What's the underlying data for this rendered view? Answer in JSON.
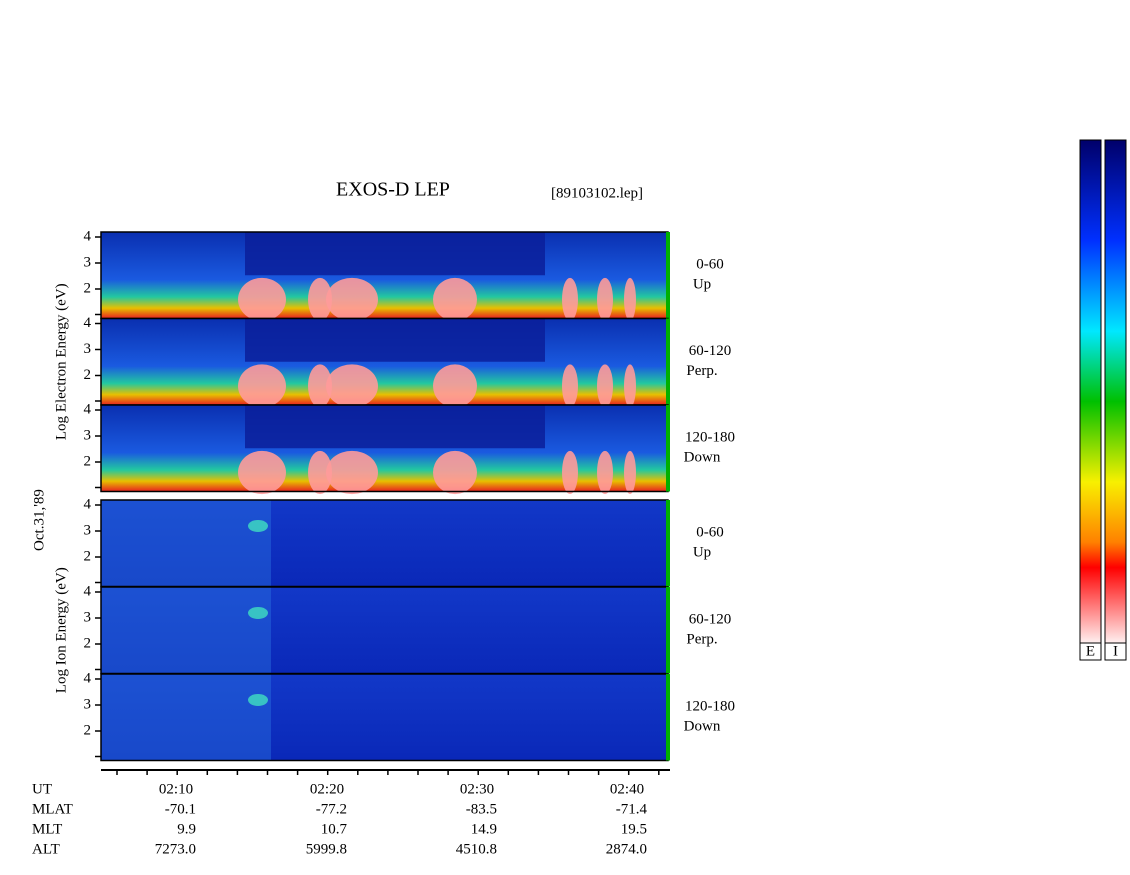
{
  "title": "EXOS-D LEP",
  "file": "[89103102.lep]",
  "date_label": "Oct.31,'89",
  "groups": [
    {
      "ylabel": "Log  Electron  Energy (eV)",
      "panels": [
        {
          "angle": "0-60",
          "direction": "Up",
          "yticks": [
            2,
            3,
            4
          ]
        },
        {
          "angle": "60-120",
          "direction": "Perp.",
          "yticks": [
            2,
            3,
            4
          ]
        },
        {
          "angle": "120-180",
          "direction": "Down",
          "yticks": [
            2,
            3,
            4
          ]
        }
      ]
    },
    {
      "ylabel": "Log  Ion  Energy (eV)",
      "panels": [
        {
          "angle": "0-60",
          "direction": "Up",
          "yticks": [
            2,
            3,
            4
          ]
        },
        {
          "angle": "60-120",
          "direction": "Perp.",
          "yticks": [
            2,
            3,
            4
          ]
        },
        {
          "angle": "120-180",
          "direction": "Down",
          "yticks": [
            2,
            3,
            4
          ]
        }
      ]
    }
  ],
  "time_axis": {
    "rows": [
      {
        "name": "UT",
        "values": [
          "02:10",
          "02:20",
          "02:30",
          "02:40"
        ]
      },
      {
        "name": "MLAT",
        "values": [
          "-70.1",
          "-77.2",
          "-83.5",
          "-71.4"
        ]
      },
      {
        "name": "MLT",
        "values": [
          "9.9",
          "10.7",
          "14.9",
          "19.5"
        ]
      },
      {
        "name": "ALT",
        "values": [
          "7273.0",
          "5999.8",
          "4510.8",
          "2874.0"
        ]
      }
    ]
  },
  "colorbars": [
    "E",
    "I"
  ]
}
